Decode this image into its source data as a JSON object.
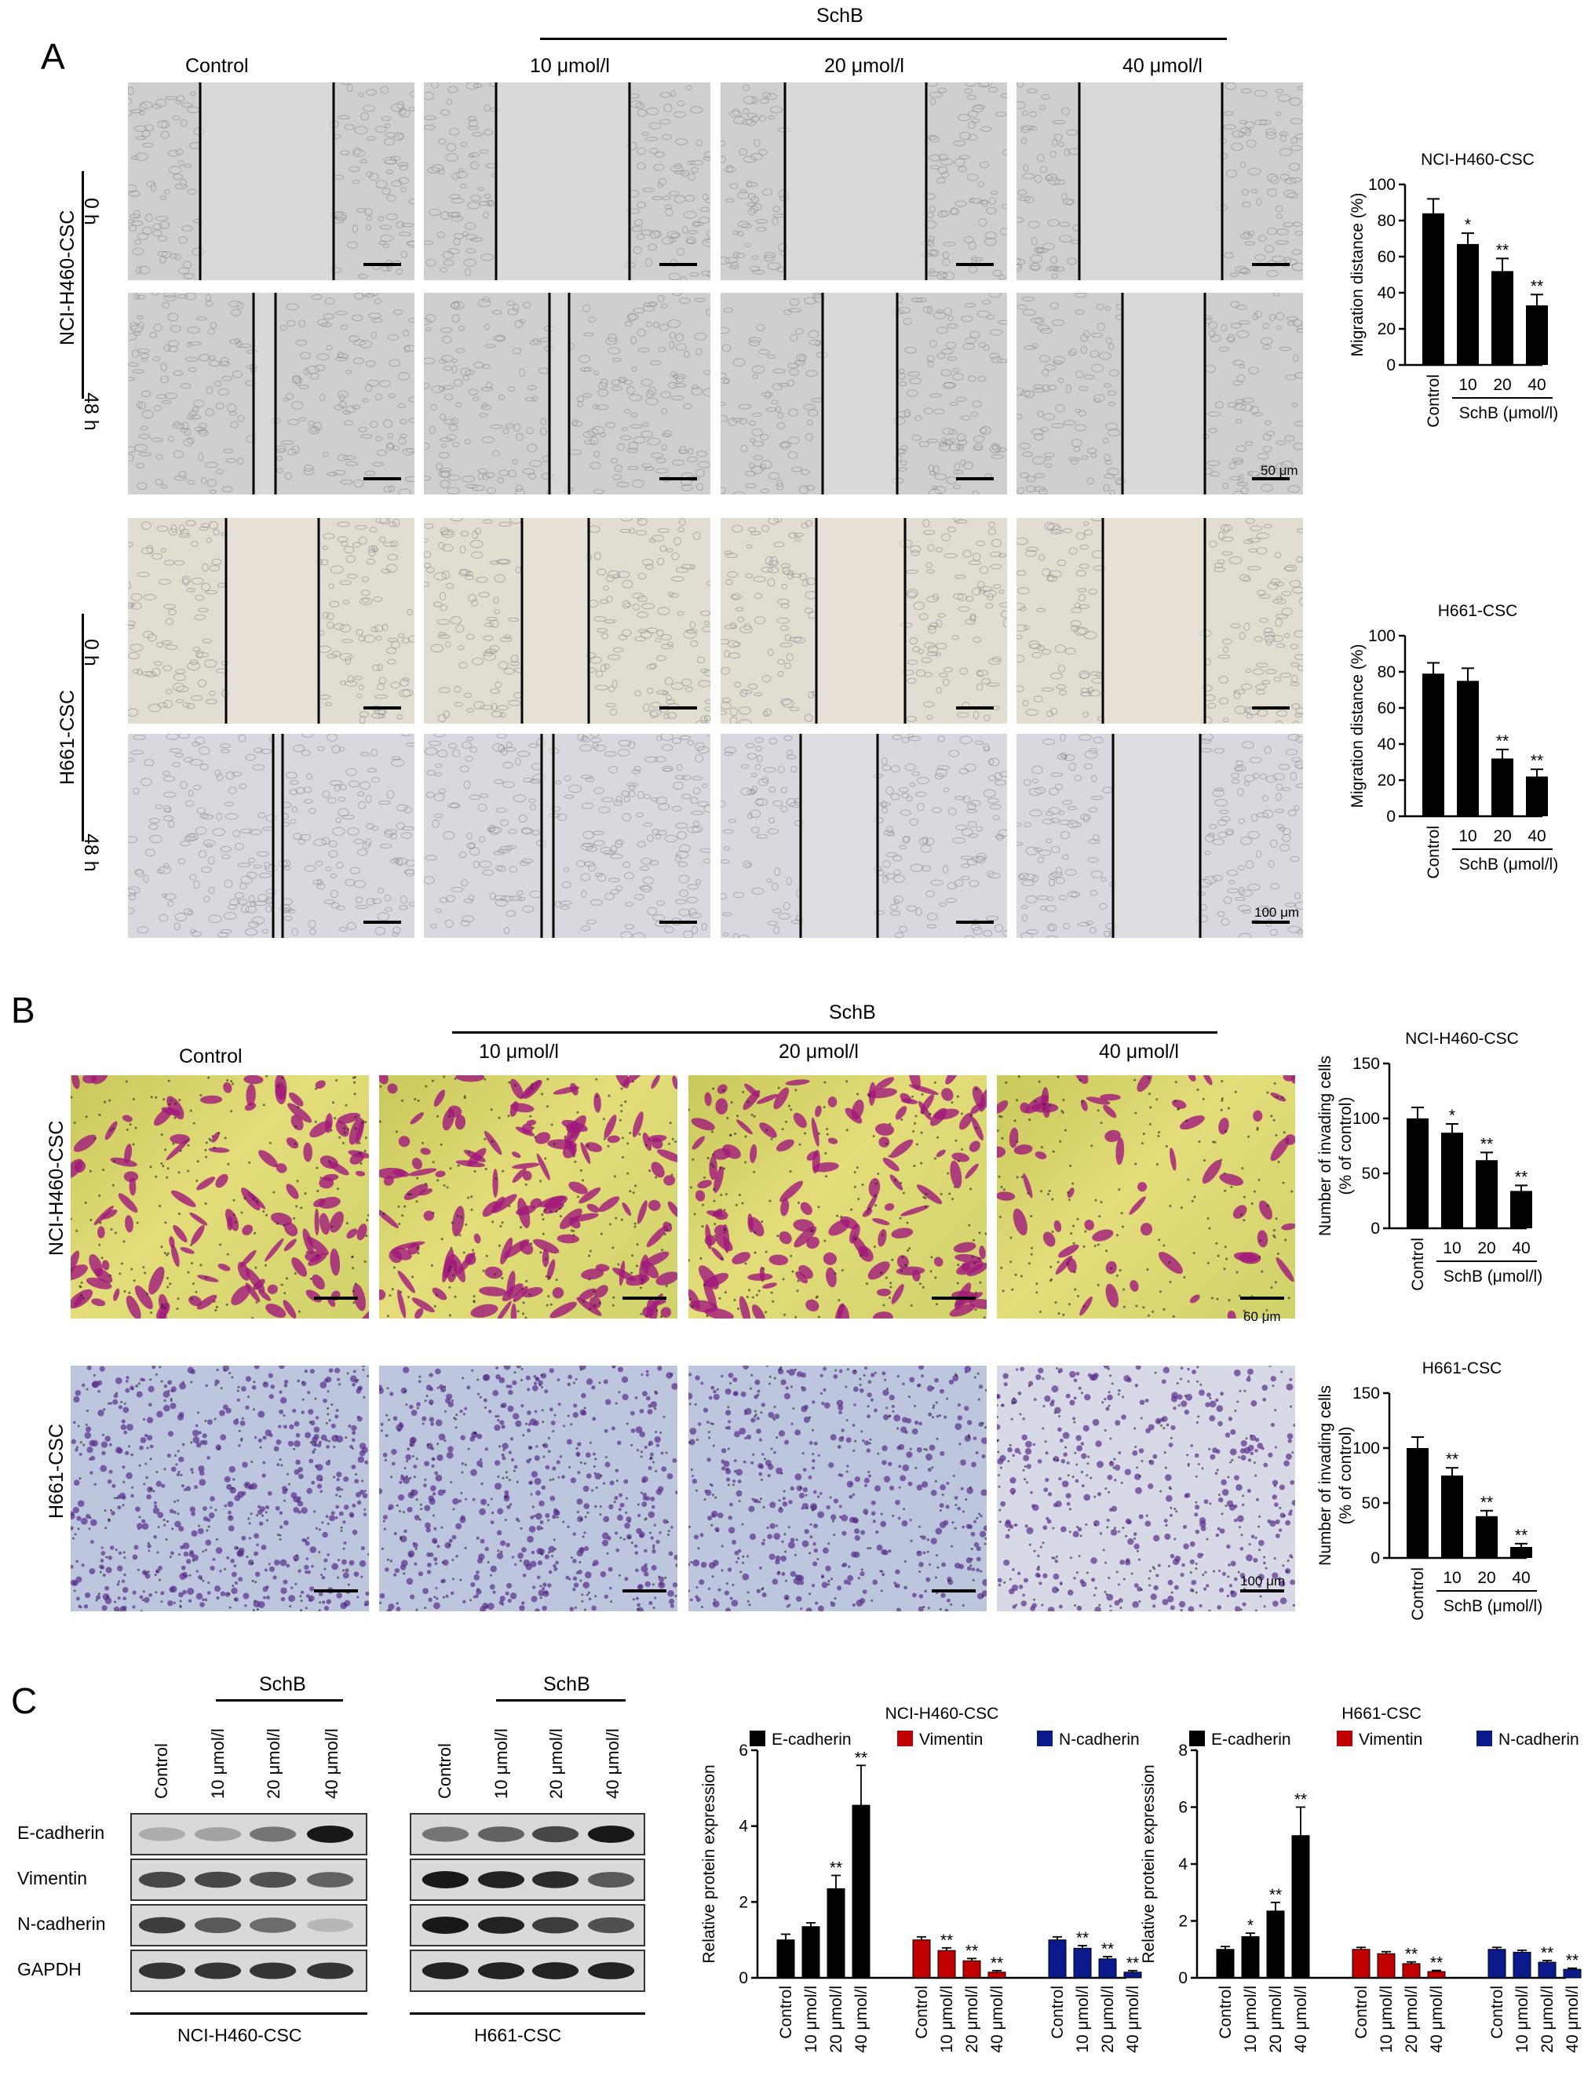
{
  "panelA": {
    "letter": "A",
    "treatment": "SchB",
    "columns": [
      "Control",
      "10 μmol/l",
      "20 μmol/l",
      "40 μmol/l"
    ],
    "cells": [
      "NCI-H460-CSC",
      "H661-CSC"
    ],
    "times": [
      "0 h",
      "48 h"
    ],
    "scales": [
      "50 μm",
      "100 μm"
    ]
  },
  "panelB": {
    "letter": "B",
    "treatment": "SchB",
    "columns": [
      "Control",
      "10 μmol/l",
      "20 μmol/l",
      "40 μmol/l"
    ],
    "cells": [
      "NCI-H460-CSC",
      "H661-CSC"
    ],
    "scales": [
      "60 μm",
      "100 μm"
    ]
  },
  "panelC": {
    "letter": "C",
    "treatment": "SchB",
    "lanes": [
      "Control",
      "10 μmol/l",
      "20 μmol/l",
      "40 μmol/l"
    ],
    "proteins": [
      "E-cadherin",
      "Vimentin",
      "N-cadherin",
      "GAPDH"
    ],
    "blot_titles": [
      "NCI-H460-CSC",
      "H661-CSC"
    ]
  },
  "colors": {
    "ecad": "#000000",
    "vim": "#c00000",
    "ncad": "#0a1a8c"
  },
  "chart_data": [
    {
      "id": "a1",
      "type": "bar",
      "title": "NCI-H460-CSC",
      "ylabel": "Migration distance (%)",
      "xgroup": "SchB (μmol/l)",
      "categories": [
        "Control",
        "10",
        "20",
        "40"
      ],
      "values": [
        84,
        67,
        52,
        33
      ],
      "errors": [
        8,
        6,
        7,
        6
      ],
      "sig": [
        "",
        "*",
        "**",
        "**"
      ],
      "ylim": [
        0,
        100
      ],
      "yticks": [
        0,
        20,
        40,
        60,
        80,
        100
      ]
    },
    {
      "id": "a2",
      "type": "bar",
      "title": "H661-CSC",
      "ylabel": "Migration distance (%)",
      "xgroup": "SchB (μmol/l)",
      "categories": [
        "Control",
        "10",
        "20",
        "40"
      ],
      "values": [
        79,
        75,
        32,
        22
      ],
      "errors": [
        6,
        7,
        5,
        4
      ],
      "sig": [
        "",
        "",
        "**",
        "**"
      ],
      "ylim": [
        0,
        100
      ],
      "yticks": [
        0,
        20,
        40,
        60,
        80,
        100
      ]
    },
    {
      "id": "b1",
      "type": "bar",
      "title": "NCI-H460-CSC",
      "ylabel": [
        "Number of invading cells",
        "(% of control)"
      ],
      "xgroup": "SchB (μmol/l)",
      "categories": [
        "Control",
        "10",
        "20",
        "40"
      ],
      "values": [
        100,
        87,
        62,
        34
      ],
      "errors": [
        10,
        8,
        7,
        5
      ],
      "sig": [
        "",
        "*",
        "**",
        "**"
      ],
      "ylim": [
        0,
        150
      ],
      "yticks": [
        0,
        50,
        100,
        150
      ]
    },
    {
      "id": "b2",
      "type": "bar",
      "title": "H661-CSC",
      "ylabel": [
        "Number of invading cells",
        "(% of control)"
      ],
      "xgroup": "SchB (μmol/l)",
      "categories": [
        "Control",
        "10",
        "20",
        "40"
      ],
      "values": [
        100,
        75,
        38,
        10
      ],
      "errors": [
        10,
        7,
        5,
        3
      ],
      "sig": [
        "",
        "**",
        "**",
        "**"
      ],
      "ylim": [
        0,
        150
      ],
      "yticks": [
        0,
        50,
        100,
        150
      ]
    },
    {
      "id": "c1",
      "type": "bar",
      "title": "NCI-H460-CSC",
      "ylabel": "Relative protein expression",
      "categories": [
        "Control",
        "10 μmol/l",
        "20 μmol/l",
        "40 μmol/l"
      ],
      "series": [
        {
          "name": "E-cadherin",
          "values": [
            1.0,
            1.35,
            2.35,
            4.55
          ],
          "errors": [
            0.15,
            0.1,
            0.35,
            1.05
          ],
          "sig": [
            "",
            "",
            "**",
            "**"
          ]
        },
        {
          "name": "Vimentin",
          "values": [
            1.0,
            0.72,
            0.45,
            0.15
          ],
          "errors": [
            0.08,
            0.07,
            0.06,
            0.04
          ],
          "sig": [
            "",
            "**",
            "**",
            "**"
          ]
        },
        {
          "name": "N-cadherin",
          "values": [
            1.0,
            0.78,
            0.5,
            0.15
          ],
          "errors": [
            0.08,
            0.07,
            0.06,
            0.04
          ],
          "sig": [
            "",
            "**",
            "**",
            "**"
          ]
        }
      ],
      "ylim": [
        0,
        6
      ],
      "yticks": [
        0,
        2,
        4,
        6
      ]
    },
    {
      "id": "c2",
      "type": "bar",
      "title": "H661-CSC",
      "ylabel": "Relative protein expression",
      "categories": [
        "Control",
        "10 μmol/l",
        "20 μmol/l",
        "40 μmol/l"
      ],
      "series": [
        {
          "name": "E-cadherin",
          "values": [
            1.0,
            1.45,
            2.35,
            5.0
          ],
          "errors": [
            0.1,
            0.12,
            0.3,
            1.0
          ],
          "sig": [
            "",
            "*",
            "**",
            "**"
          ]
        },
        {
          "name": "Vimentin",
          "values": [
            1.0,
            0.85,
            0.5,
            0.22
          ],
          "errors": [
            0.07,
            0.07,
            0.06,
            0.04
          ],
          "sig": [
            "",
            "",
            "**",
            "**"
          ]
        },
        {
          "name": "N-cadherin",
          "values": [
            1.0,
            0.9,
            0.55,
            0.3
          ],
          "errors": [
            0.07,
            0.07,
            0.06,
            0.04
          ],
          "sig": [
            "",
            "",
            "**",
            "**"
          ]
        }
      ],
      "ylim": [
        0,
        8
      ],
      "yticks": [
        0,
        2,
        4,
        6,
        8
      ]
    }
  ]
}
